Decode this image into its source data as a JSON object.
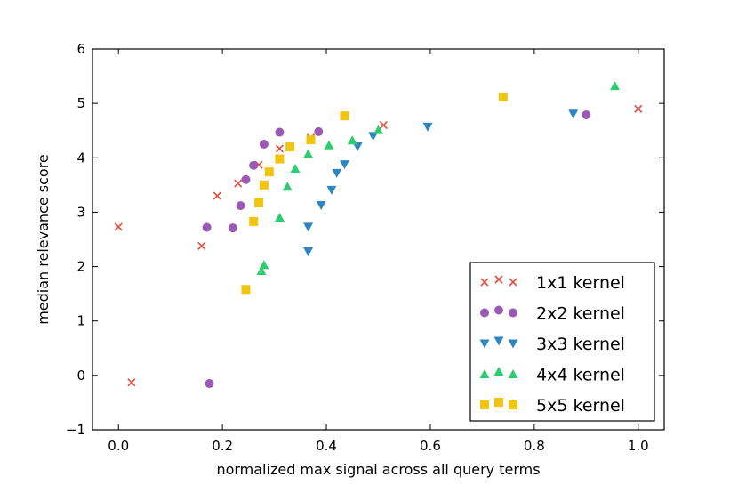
{
  "chart_data": {
    "type": "scatter",
    "title": "",
    "xlabel": "normalized max signal across all query terms",
    "ylabel": "median relevance score",
    "xlim": [
      -0.05,
      1.05
    ],
    "ylim": [
      -1,
      6
    ],
    "xticks": [
      0.0,
      0.2,
      0.4,
      0.6,
      0.8,
      1.0
    ],
    "xtick_labels": [
      "0.0",
      "0.2",
      "0.4",
      "0.6",
      "0.8",
      "1.0"
    ],
    "yticks": [
      -1,
      0,
      1,
      2,
      3,
      4,
      5,
      6
    ],
    "ytick_labels": [
      "−1",
      "0",
      "1",
      "2",
      "3",
      "4",
      "5",
      "6"
    ],
    "grid": false,
    "legend_position": "lower-right",
    "series": [
      {
        "name": "1x1 kernel",
        "marker": "x",
        "color": "#e74c3c",
        "points": [
          [
            0.0,
            2.73
          ],
          [
            0.025,
            -0.13
          ],
          [
            0.16,
            2.38
          ],
          [
            0.19,
            3.3
          ],
          [
            0.23,
            3.53
          ],
          [
            0.27,
            3.87
          ],
          [
            0.31,
            4.17
          ],
          [
            0.37,
            4.37
          ],
          [
            0.51,
            4.6
          ],
          [
            1.0,
            4.9
          ]
        ]
      },
      {
        "name": "2x2 kernel",
        "marker": "o",
        "color": "#9b59b6",
        "points": [
          [
            0.175,
            -0.15
          ],
          [
            0.17,
            2.72
          ],
          [
            0.22,
            2.71
          ],
          [
            0.235,
            3.12
          ],
          [
            0.245,
            3.6
          ],
          [
            0.26,
            3.86
          ],
          [
            0.28,
            4.25
          ],
          [
            0.31,
            4.47
          ],
          [
            0.385,
            4.48
          ],
          [
            0.9,
            4.79
          ]
        ]
      },
      {
        "name": "3x3 kernel",
        "marker": "v",
        "color": "#2e86c1",
        "points": [
          [
            0.365,
            2.28
          ],
          [
            0.365,
            2.73
          ],
          [
            0.39,
            3.13
          ],
          [
            0.41,
            3.41
          ],
          [
            0.42,
            3.72
          ],
          [
            0.435,
            3.88
          ],
          [
            0.46,
            4.21
          ],
          [
            0.49,
            4.4
          ],
          [
            0.595,
            4.57
          ],
          [
            0.875,
            4.81
          ]
        ]
      },
      {
        "name": "4x4 kernel",
        "marker": "^",
        "color": "#2ecc71",
        "points": [
          [
            0.275,
            1.92
          ],
          [
            0.28,
            2.03
          ],
          [
            0.31,
            2.9
          ],
          [
            0.325,
            3.47
          ],
          [
            0.34,
            3.8
          ],
          [
            0.365,
            4.07
          ],
          [
            0.405,
            4.23
          ],
          [
            0.45,
            4.32
          ],
          [
            0.5,
            4.51
          ],
          [
            0.955,
            5.32
          ]
        ]
      },
      {
        "name": "5x5 kernel",
        "marker": "s",
        "color": "#f1c40f",
        "points": [
          [
            0.245,
            1.58
          ],
          [
            0.26,
            2.83
          ],
          [
            0.27,
            3.17
          ],
          [
            0.28,
            3.5
          ],
          [
            0.29,
            3.74
          ],
          [
            0.31,
            3.98
          ],
          [
            0.33,
            4.2
          ],
          [
            0.37,
            4.33
          ],
          [
            0.435,
            4.77
          ],
          [
            0.74,
            5.12
          ]
        ]
      }
    ]
  }
}
